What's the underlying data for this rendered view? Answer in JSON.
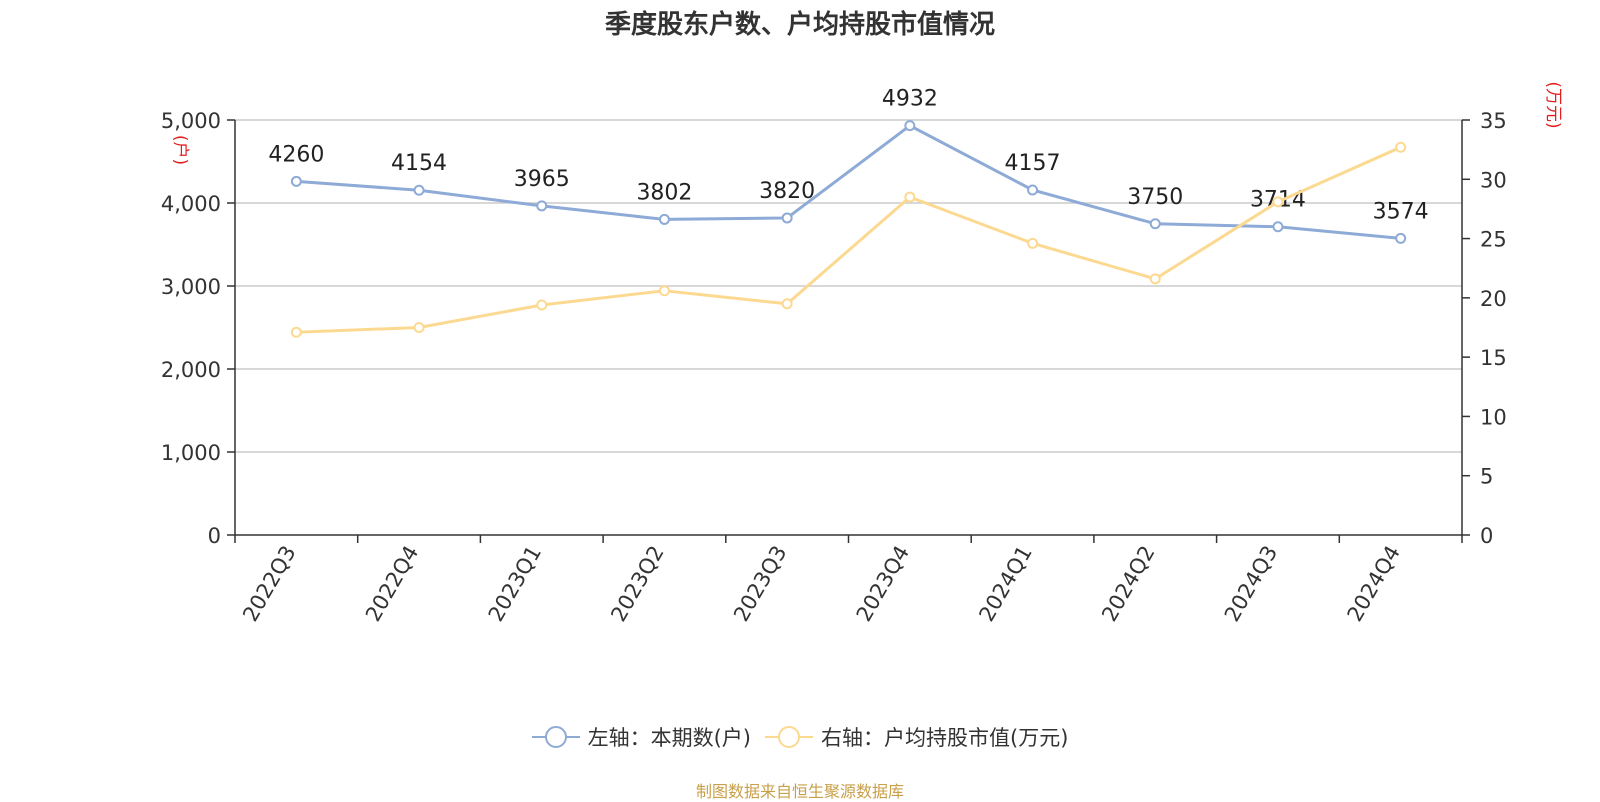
{
  "colors": {
    "series_left": "#8eaad6",
    "series_right": "#fcd991",
    "axis_unit": "#e02020",
    "source": "#c8a04a"
  },
  "chart_data": {
    "type": "line",
    "title": "季度股东户数、户均持股市值情况",
    "categories": [
      "2022Q3",
      "2022Q4",
      "2023Q1",
      "2023Q2",
      "2023Q3",
      "2023Q4",
      "2024Q1",
      "2024Q2",
      "2024Q3",
      "2024Q4"
    ],
    "series": [
      {
        "name": "左轴：本期数(户)",
        "axis": "left",
        "values": [
          4260,
          4154,
          3965,
          3802,
          3820,
          4932,
          4157,
          3750,
          3714,
          3574
        ],
        "data_labels": [
          "4260",
          "4154",
          "3965",
          "3802",
          "3820",
          "4932",
          "4157",
          "3750",
          "3714",
          "3574"
        ]
      },
      {
        "name": "右轴：户均持股市值(万元)",
        "axis": "right",
        "values": [
          17.1,
          17.5,
          19.4,
          20.6,
          19.5,
          28.5,
          24.6,
          21.6,
          28.1,
          32.7
        ]
      }
    ],
    "y_left": {
      "label": "(户)",
      "ylim": [
        0,
        5000
      ],
      "ticks": [
        0,
        1000,
        2000,
        3000,
        4000,
        5000
      ],
      "tick_labels": [
        "0",
        "1,000",
        "2,000",
        "3,000",
        "4,000",
        "5,000"
      ]
    },
    "y_right": {
      "label": "(万元)",
      "ylim": [
        0,
        35
      ],
      "ticks": [
        0,
        5,
        10,
        15,
        20,
        25,
        30,
        35
      ],
      "tick_labels": [
        "0",
        "5",
        "10",
        "15",
        "20",
        "25",
        "30",
        "35"
      ]
    },
    "grid": true,
    "legend_position": "bottom-center"
  },
  "legend": {
    "left_label": "左轴：本期数(户)",
    "right_label": "右轴：户均持股市值(万元)"
  },
  "source_text": "制图数据来自恒生聚源数据库"
}
